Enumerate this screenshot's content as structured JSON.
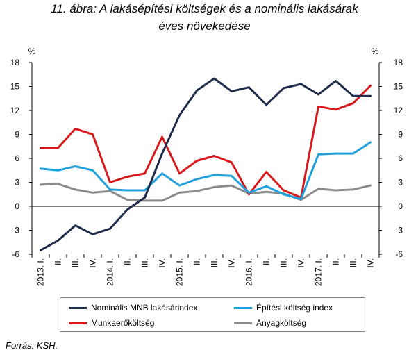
{
  "title_line1": "11. ábra: A lakásépítési költségek és a nominális lakásárak",
  "title_line2": "éves növekedése",
  "source": "Forrás: KSH.",
  "chart_data": {
    "type": "line",
    "unit_left": "%",
    "unit_right": "%",
    "ylim": [
      -6,
      18
    ],
    "yticks": [
      -6,
      -3,
      0,
      3,
      6,
      9,
      12,
      15,
      18
    ],
    "grid": false,
    "legend_position": "bottom",
    "categories": [
      "2013. I.",
      "II.",
      "III.",
      "IV.",
      "2014. I.",
      "II.",
      "III.",
      "IV.",
      "2015. I.",
      "II.",
      "III.",
      "IV.",
      "2016. I.",
      "II.",
      "III.",
      "IV.",
      "2017. I.",
      "II.",
      "III.",
      "IV."
    ],
    "series": [
      {
        "name": "Nominális MNB lakásárindex",
        "color": "#1f2d4a",
        "values": [
          -5.5,
          -4.3,
          -2.4,
          -3.5,
          -2.8,
          -0.4,
          1.1,
          6.6,
          11.4,
          14.5,
          16.0,
          14.4,
          14.9,
          12.7,
          14.8,
          15.3,
          14.0,
          15.7,
          13.8,
          13.8
        ]
      },
      {
        "name": "Építési költség index",
        "color": "#21a0db",
        "values": [
          4.7,
          4.5,
          5.0,
          4.5,
          2.1,
          2.0,
          2.0,
          4.1,
          2.6,
          3.4,
          3.9,
          3.8,
          1.7,
          2.5,
          1.5,
          0.9,
          6.5,
          6.6,
          6.6,
          8.0
        ]
      },
      {
        "name": "Munkaerőköltség",
        "color": "#d7191c",
        "values": [
          7.3,
          7.3,
          9.7,
          9.0,
          3.0,
          3.7,
          4.1,
          8.7,
          4.1,
          5.7,
          6.3,
          5.5,
          1.5,
          4.3,
          2.0,
          1.1,
          12.5,
          12.1,
          12.9,
          15.1
        ]
      },
      {
        "name": "Anyagköltség",
        "color": "#8c8c8c",
        "values": [
          2.7,
          2.8,
          2.1,
          1.7,
          1.9,
          0.8,
          0.7,
          0.7,
          1.7,
          1.9,
          2.4,
          2.6,
          1.6,
          1.8,
          1.6,
          0.8,
          2.2,
          2.0,
          2.1,
          2.6
        ]
      }
    ]
  }
}
